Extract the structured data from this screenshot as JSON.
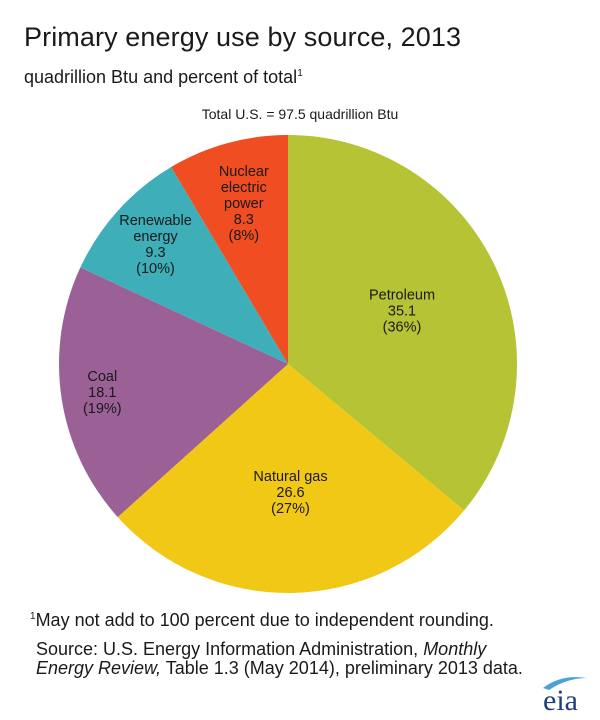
{
  "title": "Primary energy use by source, 2013",
  "subtitle": "quadrillion Btu and percent of total",
  "subtitle_sup": "1",
  "total_label": "Total U.S. = 97.5 quadrillion Btu",
  "footnote": {
    "marker": "1",
    "text": "May not add to 100 percent due to independent rounding."
  },
  "source": {
    "prefix": "Source: U.S. Energy Information Administration, ",
    "publication": "Monthly Energy Review,",
    "suffix": " Table 1.3 (May 2014), preliminary 2013 data."
  },
  "logo_text": "eia",
  "colors": {
    "petroleum": "#b5c334",
    "natural_gas": "#f2c816",
    "coal": "#9b6196",
    "renewable": "#3eaeb8",
    "nuclear": "#f04d22",
    "logo_blue": "#1f3f7a",
    "logo_swoosh": "#4aa3d8"
  },
  "chart_data": {
    "type": "pie",
    "total": 97.5,
    "slices": [
      {
        "name": "Petroleum",
        "value": 35.1,
        "percent": "(36%)",
        "color": "#b5c334"
      },
      {
        "name": "Natural gas",
        "value": 26.6,
        "percent": "(27%)",
        "color": "#f2c816"
      },
      {
        "name": "Coal",
        "value": 18.1,
        "percent": "(19%)",
        "color": "#9b6196"
      },
      {
        "name": "Renewable energy",
        "value": 9.3,
        "percent": "(10%)",
        "color": "#3eaeb8"
      },
      {
        "name": "Nuclear electric power",
        "value": 8.3,
        "percent": "(8%)",
        "color": "#f04d22"
      }
    ],
    "start": "12 o'clock",
    "direction": "clockwise"
  }
}
